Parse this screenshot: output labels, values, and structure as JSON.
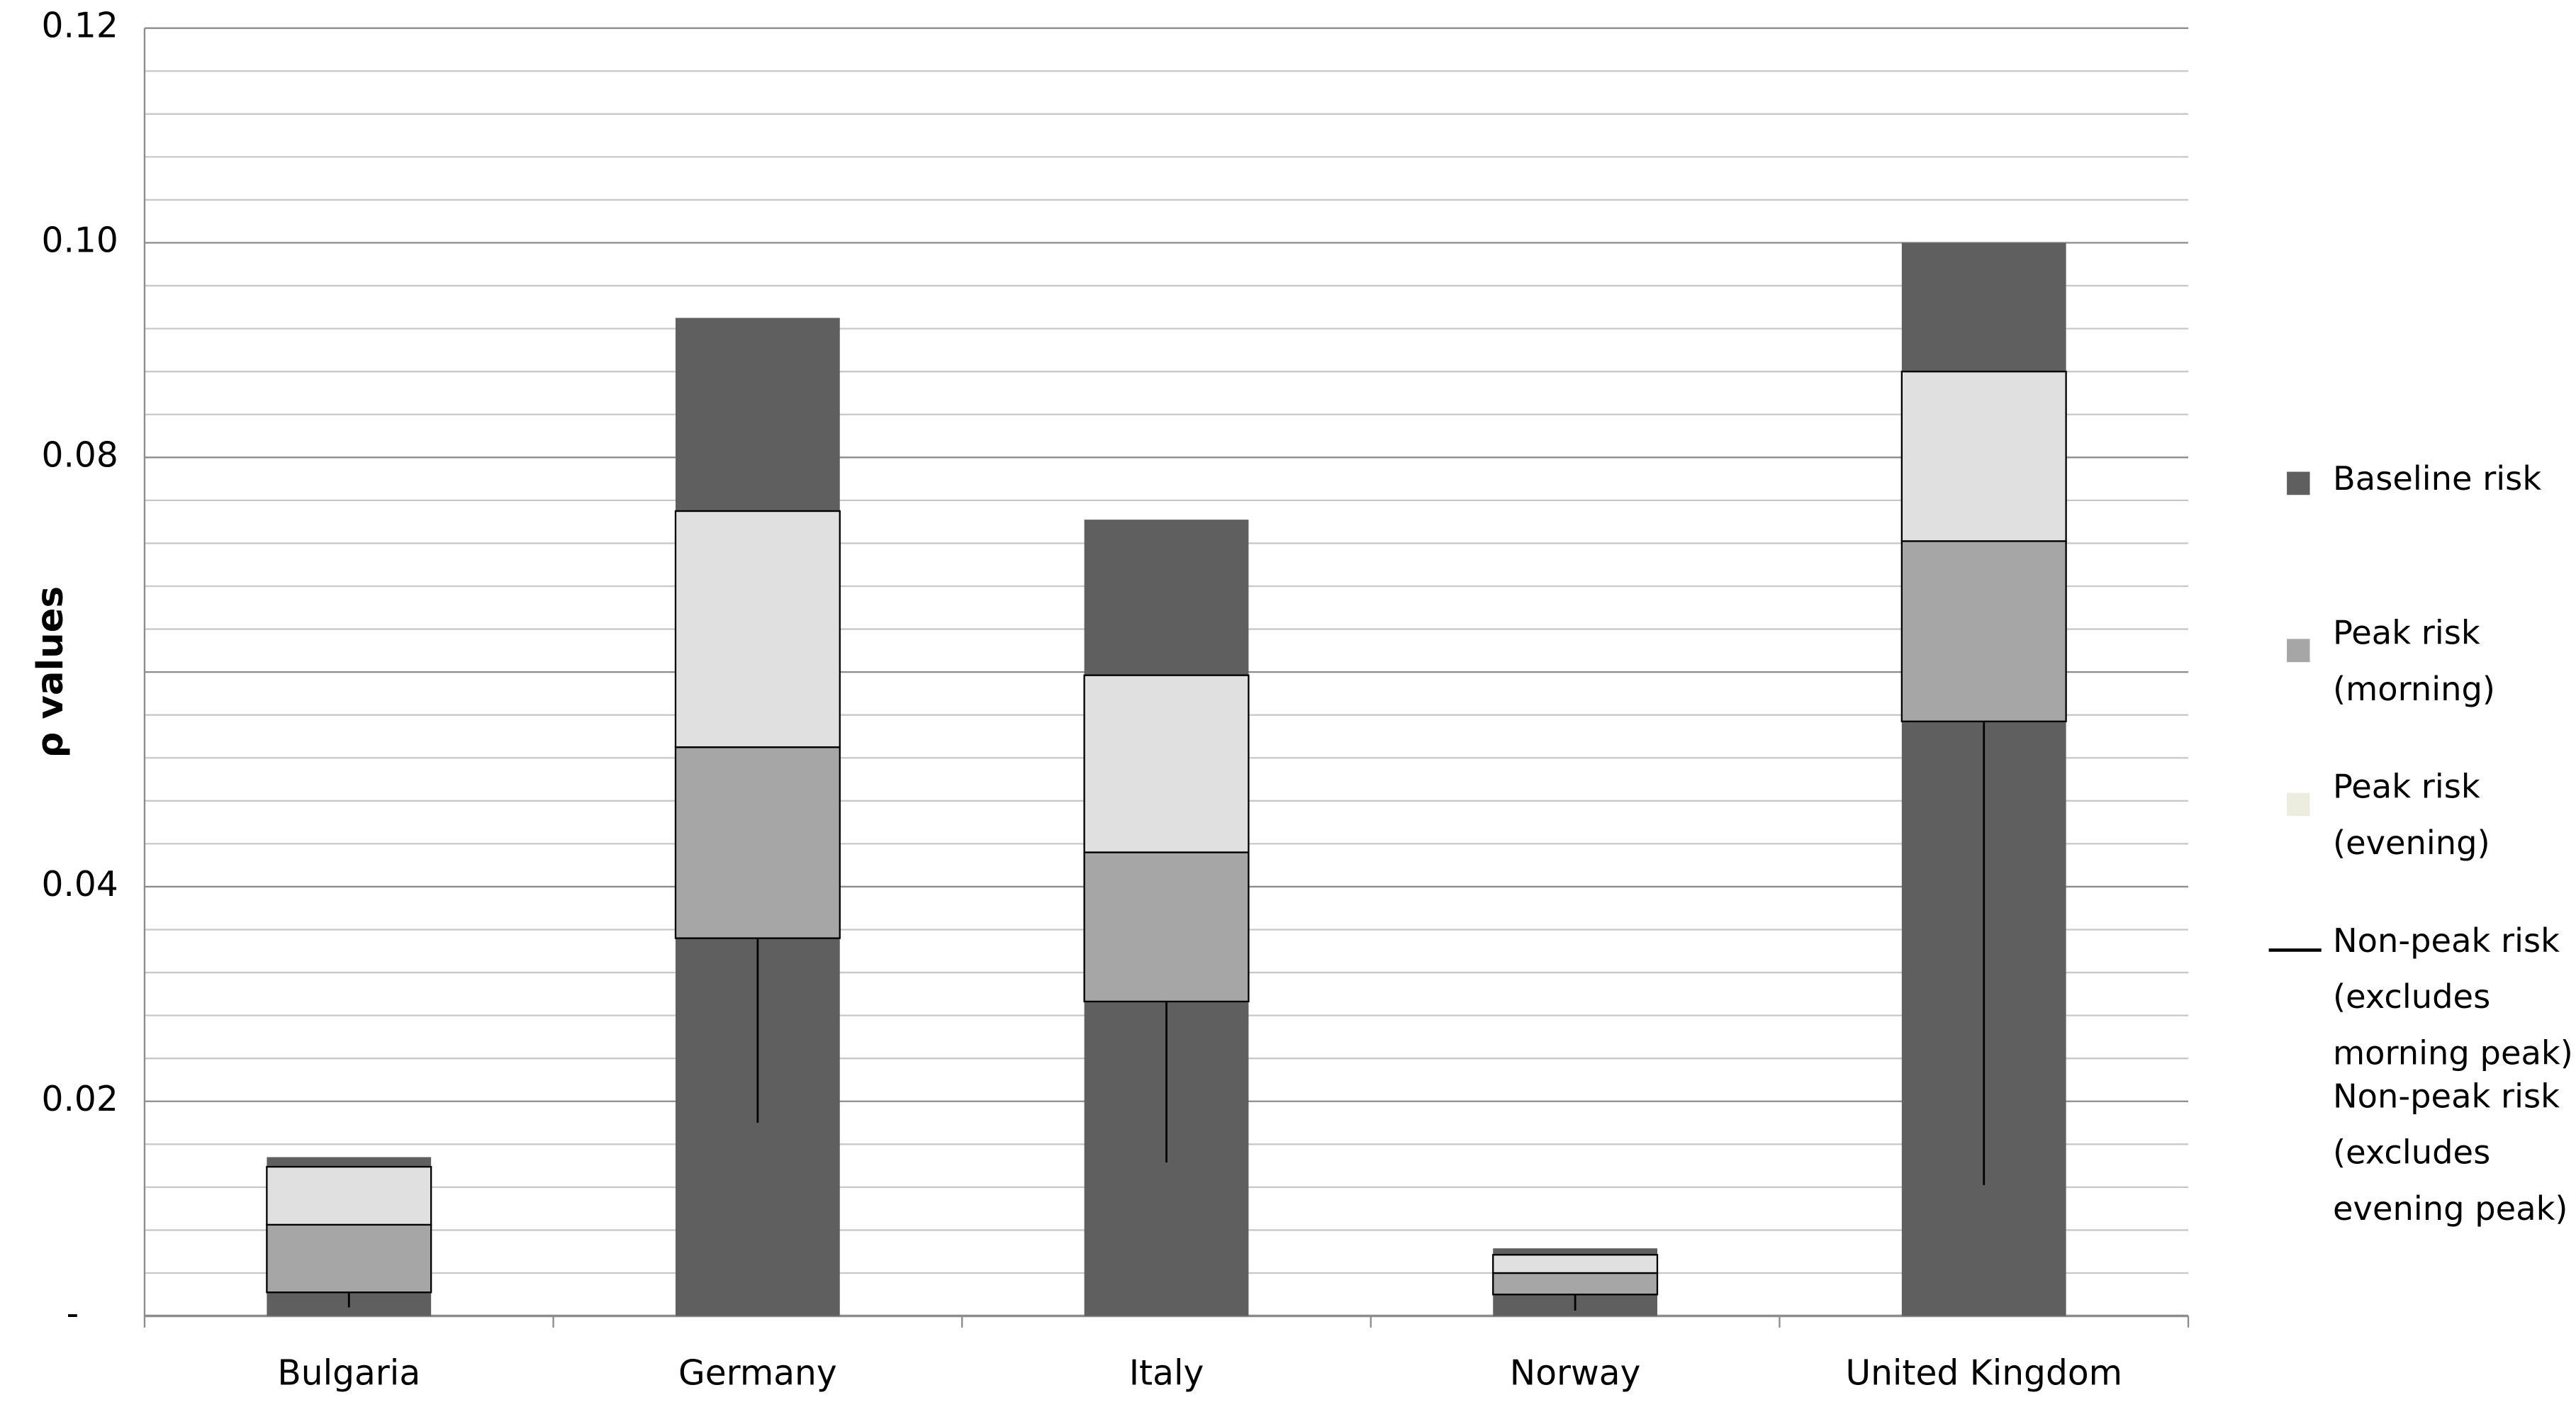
{
  "chart_data": {
    "type": "bar",
    "y_label": "ρ values",
    "categories": [
      "Bulgaria",
      "Germany",
      "Italy",
      "Norway",
      "United Kingdom"
    ],
    "ylim": [
      0,
      0.12
    ],
    "yticks": [
      {
        "value": 0,
        "label": "-"
      },
      0.02,
      0.04,
      {
        "value": 0.06,
        "label": null
      },
      0.08,
      {
        "value": 0.1,
        "label": "0.10"
      },
      0.12
    ],
    "yminorticks": [
      0.004,
      0.008,
      0.012,
      0.016,
      0.024,
      0.028,
      0.032,
      0.036,
      0.044,
      0.048,
      0.052,
      0.056,
      0.064,
      0.068,
      0.072,
      0.076,
      0.084,
      0.088,
      0.092,
      0.096,
      0.104,
      0.108,
      0.112,
      0.116
    ],
    "grid": true,
    "legend": "right",
    "series": [
      {
        "name": "Baseline risk",
        "color": "#5f5f5f",
        "values": [
          0.0148,
          0.093,
          0.0742,
          0.0063,
          0.1
        ]
      },
      {
        "name": "Peak risk (morning)",
        "color": "#a6a6a6",
        "low": [
          0.0022,
          0.0352,
          0.0293,
          0.002,
          0.0554
        ],
        "values": [
          0.0085,
          0.053,
          0.0432,
          0.004,
          0.0722
        ]
      },
      {
        "name": "Peak risk (evening)",
        "color": "#e0e0e0",
        "low": [
          0.0085,
          0.053,
          0.0432,
          0.004,
          0.0722
        ],
        "values": [
          0.0139,
          0.075,
          0.0597,
          0.0057,
          0.088
        ]
      },
      {
        "name": "Non-peak risk (excludes morning peak)",
        "color": "#000000",
        "values": [
          0.0008,
          0.018,
          0.0143,
          0.0005,
          0.0122
        ]
      },
      {
        "name": "Non-peak risk (excludes evening peak)"
      }
    ]
  }
}
